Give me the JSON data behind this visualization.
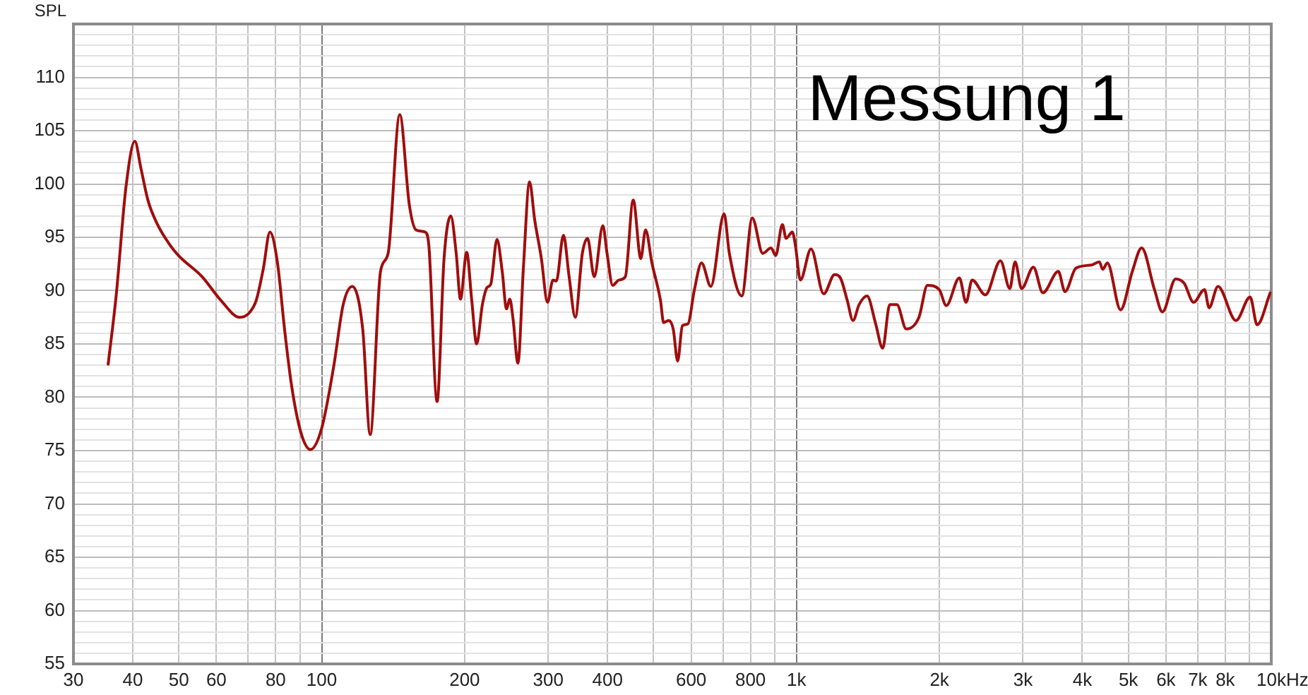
{
  "chart_data": {
    "type": "line",
    "ylabel": "SPL",
    "xlabel": "Hz",
    "annotations": [
      "Messung 1"
    ],
    "log": "x",
    "grid": true,
    "marker": "none",
    "xlim": [
      30,
      10000
    ],
    "ylim": [
      55,
      115
    ],
    "xticks": [
      30,
      40,
      50,
      60,
      {
        "value": 70,
        "label": null
      },
      80,
      {
        "value": 90,
        "label": null
      },
      100,
      200,
      300,
      400,
      {
        "value": 500,
        "label": null
      },
      600,
      {
        "value": 700,
        "label": null
      },
      800,
      {
        "value": 900,
        "label": null
      },
      {
        "value": 1000,
        "label": "1k"
      },
      {
        "value": 2000,
        "label": "2k"
      },
      {
        "value": 3000,
        "label": "3k"
      },
      {
        "value": 4000,
        "label": "4k"
      },
      {
        "value": 5000,
        "label": "5k"
      },
      {
        "value": 6000,
        "label": "6k"
      },
      {
        "value": 7000,
        "label": "7k"
      },
      {
        "value": 8000,
        "label": "8k"
      },
      {
        "value": 9000,
        "label": null
      },
      {
        "value": 10000,
        "label": "10k"
      }
    ],
    "yticks": [
      55,
      {
        "value": 56,
        "label": null
      },
      {
        "value": 57,
        "label": null
      },
      {
        "value": 58,
        "label": null
      },
      {
        "value": 59,
        "label": null
      },
      60,
      {
        "value": 61,
        "label": null
      },
      {
        "value": 62,
        "label": null
      },
      {
        "value": 63,
        "label": null
      },
      {
        "value": 64,
        "label": null
      },
      65,
      {
        "value": 66,
        "label": null
      },
      {
        "value": 67,
        "label": null
      },
      {
        "value": 68,
        "label": null
      },
      {
        "value": 69,
        "label": null
      },
      70,
      {
        "value": 71,
        "label": null
      },
      {
        "value": 72,
        "label": null
      },
      {
        "value": 73,
        "label": null
      },
      {
        "value": 74,
        "label": null
      },
      75,
      {
        "value": 76,
        "label": null
      },
      {
        "value": 77,
        "label": null
      },
      {
        "value": 78,
        "label": null
      },
      {
        "value": 79,
        "label": null
      },
      80,
      {
        "value": 81,
        "label": null
      },
      {
        "value": 82,
        "label": null
      },
      {
        "value": 83,
        "label": null
      },
      {
        "value": 84,
        "label": null
      },
      85,
      {
        "value": 86,
        "label": null
      },
      {
        "value": 87,
        "label": null
      },
      {
        "value": 88,
        "label": null
      },
      {
        "value": 89,
        "label": null
      },
      90,
      {
        "value": 91,
        "label": null
      },
      {
        "value": 92,
        "label": null
      },
      {
        "value": 93,
        "label": null
      },
      {
        "value": 94,
        "label": null
      },
      95,
      {
        "value": 96,
        "label": null
      },
      {
        "value": 97,
        "label": null
      },
      {
        "value": 98,
        "label": null
      },
      {
        "value": 99,
        "label": null
      },
      100,
      {
        "value": 101,
        "label": null
      },
      {
        "value": 102,
        "label": null
      },
      {
        "value": 103,
        "label": null
      },
      {
        "value": 104,
        "label": null
      },
      105,
      {
        "value": 106,
        "label": null
      },
      {
        "value": 107,
        "label": null
      },
      {
        "value": 108,
        "label": null
      },
      {
        "value": 109,
        "label": null
      },
      110,
      {
        "value": 111,
        "label": null
      },
      {
        "value": 112,
        "label": null
      },
      {
        "value": 113,
        "label": null
      },
      {
        "value": 114,
        "label": null
      }
    ],
    "x": [
      35.5,
      36.9,
      38.7,
      40.4,
      41.6,
      43.1,
      45.1,
      47.7,
      49.9,
      56,
      61.3,
      67.2,
      70.3,
      72.8,
      75.3,
      77.8,
      80.7,
      83.5,
      86.4,
      90.4,
      94.7,
      100,
      106,
      111,
      116,
      122,
      126.5,
      133,
      138,
      146,
      153,
      158,
      165,
      168,
      175,
      181,
      187,
      192,
      196,
      202,
      207,
      212,
      218,
      223,
      227,
      234,
      240,
      245,
      249,
      253,
      259,
      266,
      274,
      281,
      290,
      299,
      307,
      312,
      323,
      332,
      342,
      354,
      363,
      375,
      391,
      399,
      410,
      423,
      436,
      453,
      470,
      481,
      496,
      517,
      525,
      538,
      550,
      562,
      575,
      591,
      609,
      631,
      660,
      704,
      722,
      767,
      807,
      849,
      884,
      904,
      934,
      951,
      980,
      995,
      1019,
      1073,
      1141,
      1203,
      1237,
      1279,
      1315,
      1355,
      1408,
      1468,
      1519,
      1572,
      1627,
      1703,
      1811,
      1887,
      1998,
      2068,
      2203,
      2276,
      2344,
      2500,
      2689,
      2814,
      2887,
      2979,
      3155,
      3303,
      3560,
      3677,
      3876,
      4178,
      4344,
      4415,
      4516,
      4815,
      5097,
      5333,
      5675,
      5899,
      6289,
      6553,
      6862,
      7233,
      7396,
      7722,
      8426,
      9025,
      9338,
      9950
    ],
    "series": [
      {
        "color": "#a00d0d",
        "values": [
          83.1,
          89.5,
          99.7,
          104,
          101.5,
          98.4,
          96.2,
          94.4,
          93.3,
          91.3,
          89.1,
          87.5,
          87.9,
          89.1,
          92,
          95.5,
          92.6,
          86.4,
          81.1,
          76.7,
          75.1,
          77.1,
          82.9,
          88.7,
          90.4,
          86.4,
          76.5,
          91.8,
          93.5,
          106.5,
          98,
          95.7,
          95.5,
          94.4,
          79.6,
          93,
          97,
          93.5,
          89.2,
          93.6,
          89.1,
          85,
          88.7,
          90.3,
          90.6,
          94.8,
          91.8,
          88.3,
          89.2,
          87.3,
          83.2,
          92.2,
          100.2,
          96.6,
          93.1,
          88.9,
          91,
          90.9,
          95.2,
          91.3,
          87.5,
          93.5,
          94.9,
          91.3,
          96.1,
          93.5,
          90.5,
          91,
          91.3,
          98.5,
          93,
          95.7,
          92.6,
          89.1,
          87,
          87.2,
          86.4,
          83.4,
          86.7,
          86.9,
          90,
          92.6,
          90.4,
          97.2,
          93.5,
          89.5,
          96.8,
          93.5,
          94,
          93.3,
          96.2,
          94.9,
          95.5,
          94.2,
          91,
          93.9,
          89.7,
          91.5,
          91.2,
          89.1,
          87.2,
          88.7,
          89.5,
          86.9,
          84.6,
          88.7,
          88.7,
          86.4,
          87.5,
          90.5,
          90.1,
          88.6,
          91.2,
          88.9,
          91,
          89.6,
          92.8,
          90.2,
          92.7,
          90.2,
          92.2,
          89.8,
          91.8,
          89.9,
          92.1,
          92.4,
          92.7,
          92,
          92.6,
          88.2,
          91.8,
          94,
          90.1,
          88,
          91.1,
          90.7,
          88.9,
          90.1,
          88.4,
          90.4,
          87.2,
          89.4,
          86.8,
          89.8
        ]
      }
    ]
  }
}
